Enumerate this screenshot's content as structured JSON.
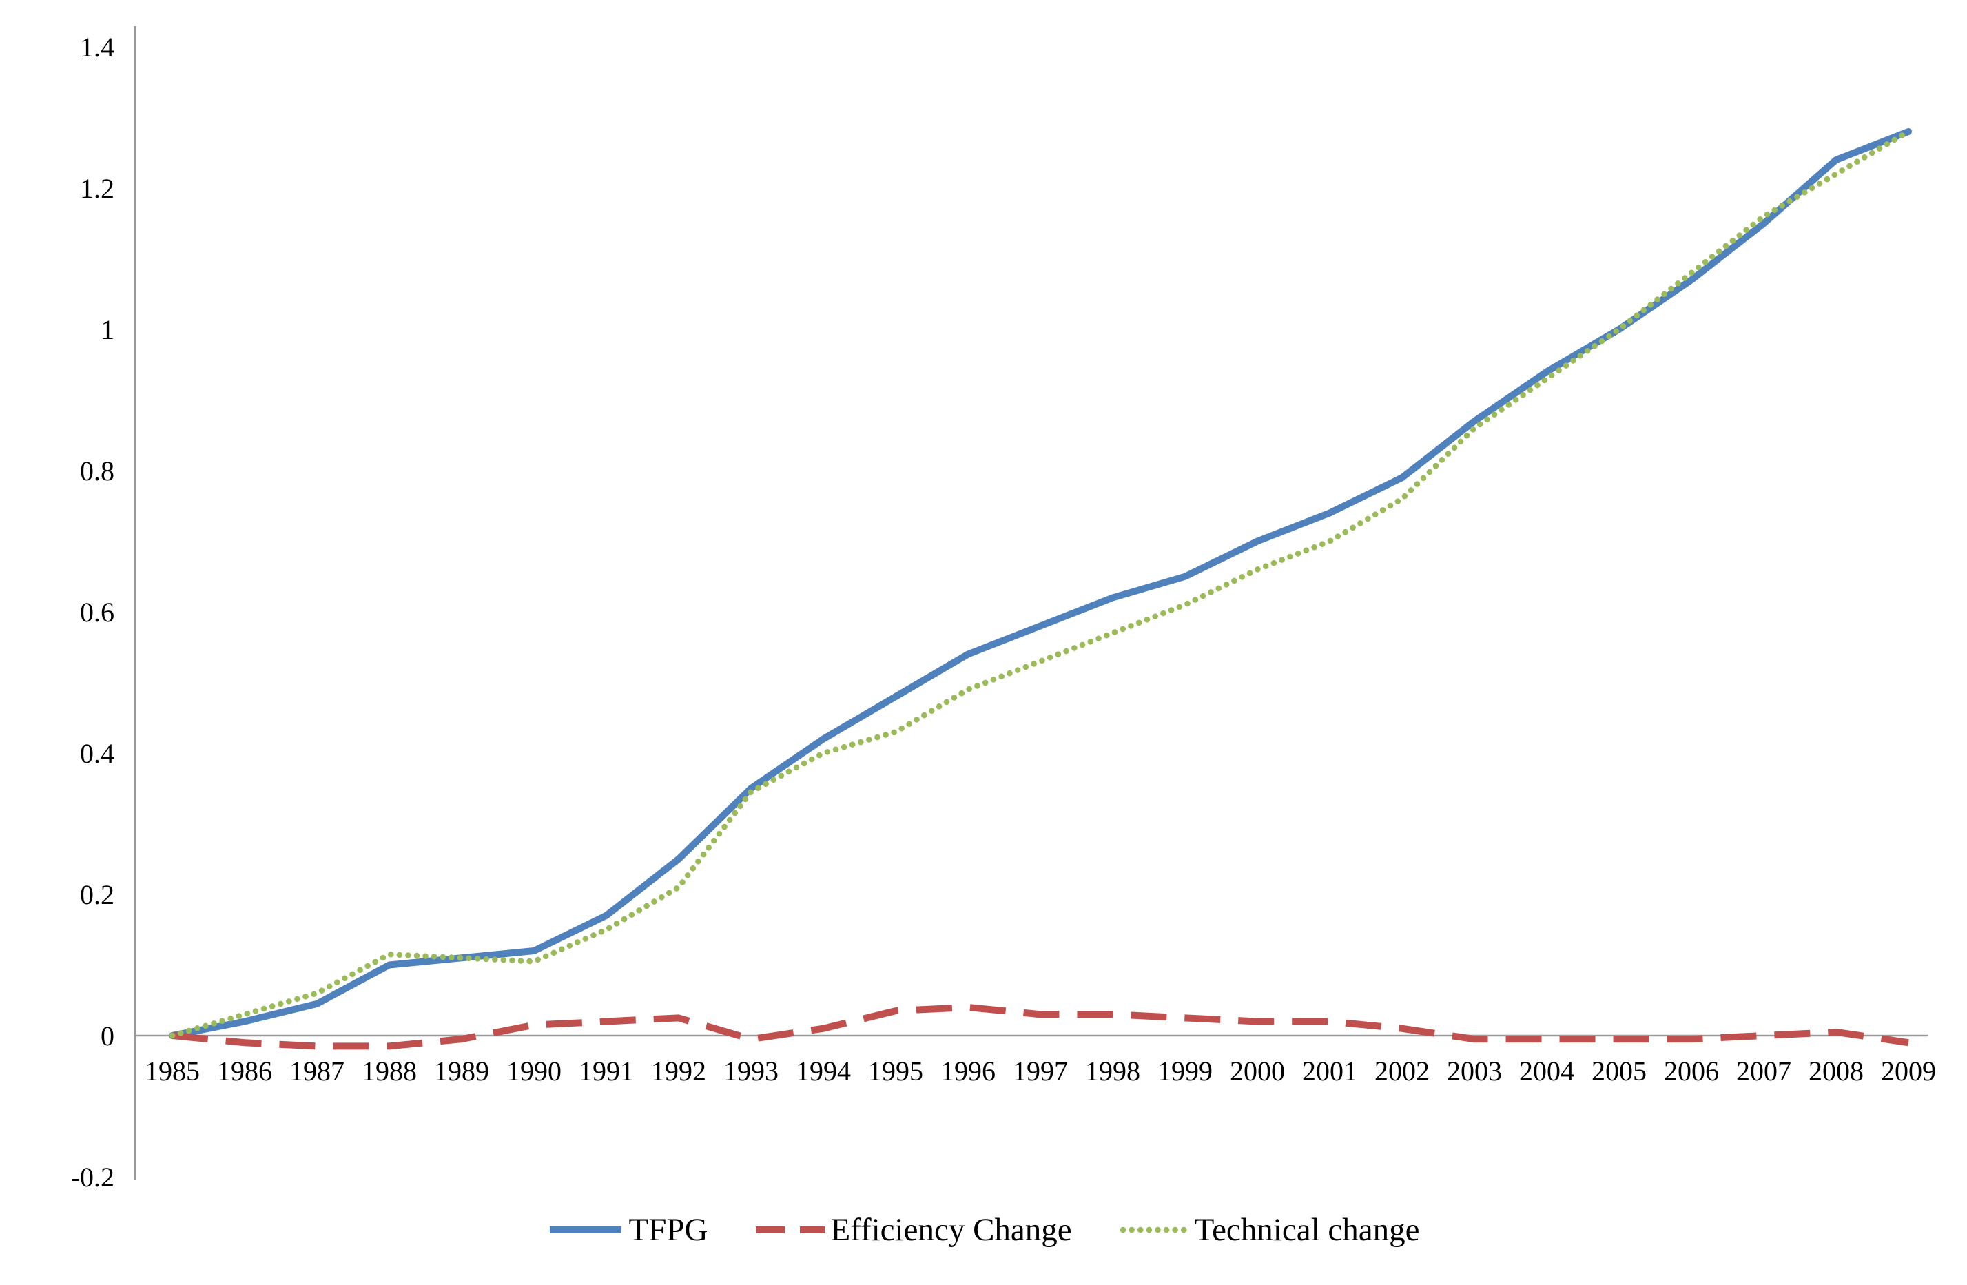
{
  "chart_data": {
    "type": "line",
    "x": [
      1985,
      1986,
      1987,
      1988,
      1989,
      1990,
      1991,
      1992,
      1993,
      1994,
      1995,
      1996,
      1997,
      1998,
      1999,
      2000,
      2001,
      2002,
      2003,
      2004,
      2005,
      2006,
      2007,
      2008,
      2009
    ],
    "series": [
      {
        "name": "TFPG",
        "color": "#4F81BD",
        "line_style": "solid",
        "values": [
          0,
          0.02,
          0.045,
          0.1,
          0.11,
          0.12,
          0.17,
          0.25,
          0.35,
          0.42,
          0.48,
          0.54,
          0.58,
          0.62,
          0.65,
          0.7,
          0.74,
          0.79,
          0.87,
          0.94,
          1.0,
          1.07,
          1.15,
          1.24,
          1.28
        ]
      },
      {
        "name": "Efficiency Change",
        "color": "#C0504D",
        "line_style": "dashed",
        "values": [
          0,
          -0.01,
          -0.015,
          -0.015,
          -0.005,
          0.015,
          0.02,
          0.025,
          -0.005,
          0.01,
          0.035,
          0.04,
          0.03,
          0.03,
          0.025,
          0.02,
          0.02,
          0.01,
          -0.005,
          -0.005,
          -0.005,
          -0.005,
          0,
          0.005,
          -0.01
        ]
      },
      {
        "name": "Technical change",
        "color": "#9BBB59",
        "line_style": "dotted",
        "values": [
          0,
          0.03,
          0.06,
          0.115,
          0.11,
          0.105,
          0.15,
          0.21,
          0.345,
          0.4,
          0.43,
          0.49,
          0.53,
          0.57,
          0.61,
          0.66,
          0.7,
          0.76,
          0.86,
          0.93,
          1.0,
          1.08,
          1.16,
          1.22,
          1.28
        ]
      }
    ],
    "title": "",
    "xlabel": "",
    "ylabel": "",
    "ylim": [
      -0.2,
      1.4
    ],
    "y_ticks": [
      {
        "label": "1.4",
        "value": 1.4
      },
      {
        "label": "1.2",
        "value": 1.2
      },
      {
        "label": "1",
        "value": 1.0
      },
      {
        "label": "0.8",
        "value": 0.8
      },
      {
        "label": "0.6",
        "value": 0.6
      },
      {
        "label": "0.4",
        "value": 0.4
      },
      {
        "label": "0.2",
        "value": 0.2
      },
      {
        "label": "0",
        "value": 0.0
      },
      {
        "label": "-0.2",
        "value": -0.2
      }
    ],
    "grid": false,
    "legend_position": "bottom"
  },
  "style": {
    "axis_color": "#9a9a9a",
    "text_color": "#000000",
    "background": "#ffffff"
  }
}
